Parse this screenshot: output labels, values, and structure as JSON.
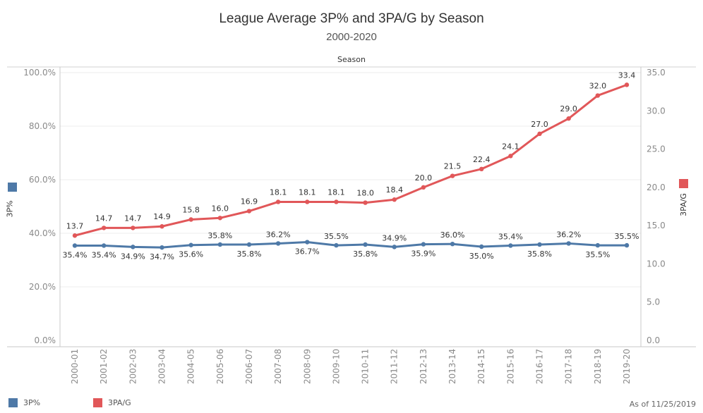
{
  "header": {
    "title": "League Average 3P% and 3PA/G by Season",
    "subtitle": "2000-2020",
    "column_header": "Season"
  },
  "footer": {
    "as_of": "As of 11/25/2019"
  },
  "legend": [
    {
      "label": "3P%",
      "color": "#4e79a7"
    },
    {
      "label": "3PA/G",
      "color": "#e15759"
    }
  ],
  "chart_data": {
    "type": "line",
    "title": "League Average 3P% and 3PA/G by Season",
    "subtitle": "2000-2020",
    "xlabel": "Season",
    "categories": [
      "2000-01",
      "2001-02",
      "2002-03",
      "2003-04",
      "2004-05",
      "2005-06",
      "2006-07",
      "2007-08",
      "2008-09",
      "2009-10",
      "2010-11",
      "2011-12",
      "2012-13",
      "2013-14",
      "2014-15",
      "2015-16",
      "2016-17",
      "2017-18",
      "2018-19",
      "2019-20"
    ],
    "series": [
      {
        "name": "3P%",
        "axis": "left",
        "color": "#4e79a7",
        "values": [
          35.4,
          35.4,
          34.9,
          34.7,
          35.6,
          35.8,
          35.8,
          36.2,
          36.7,
          35.5,
          35.8,
          34.9,
          35.9,
          36.0,
          35.0,
          35.4,
          35.8,
          36.2,
          35.5,
          35.5
        ],
        "labels": [
          "35.4%",
          "35.4%",
          "34.9%",
          "34.7%",
          "35.6%",
          "35.8%",
          "35.8%",
          "36.2%",
          "36.7%",
          "35.5%",
          "35.8%",
          "34.9%",
          "35.9%",
          "36.0%",
          "35.0%",
          "35.4%",
          "35.8%",
          "36.2%",
          "35.5%",
          "35.5%"
        ],
        "label_positions": [
          "below",
          "below",
          "below",
          "below",
          "below",
          "above",
          "below",
          "above",
          "below",
          "above",
          "below",
          "above",
          "below",
          "above",
          "below",
          "above",
          "below",
          "above",
          "below",
          "above"
        ]
      },
      {
        "name": "3PA/G",
        "axis": "right",
        "color": "#e15759",
        "values": [
          13.7,
          14.7,
          14.7,
          14.9,
          15.8,
          16.0,
          16.9,
          18.1,
          18.1,
          18.1,
          18.0,
          18.4,
          20.0,
          21.5,
          22.4,
          24.1,
          27.0,
          29.0,
          32.0,
          33.4
        ],
        "labels": [
          "13.7",
          "14.7",
          "14.7",
          "14.9",
          "15.8",
          "16.0",
          "16.9",
          "18.1",
          "18.1",
          "18.1",
          "18.0",
          "18.4",
          "20.0",
          "21.5",
          "22.4",
          "24.1",
          "27.0",
          "29.0",
          "32.0",
          "33.4"
        ]
      }
    ],
    "left_axis": {
      "title": "3P%",
      "range": [
        0,
        100
      ],
      "ticks": [
        0,
        20,
        40,
        60,
        80,
        100
      ],
      "tick_labels": [
        "0.0%",
        "20.0%",
        "40.0%",
        "60.0%",
        "80.0%",
        "100.0%"
      ]
    },
    "right_axis": {
      "title": "3PA/G",
      "range": [
        0,
        35
      ],
      "ticks": [
        0,
        5,
        10,
        15,
        20,
        25,
        30,
        35
      ],
      "tick_labels": [
        "0.0",
        "5.0",
        "10.0",
        "15.0",
        "20.0",
        "25.0",
        "30.0",
        "35.0"
      ]
    },
    "grid": true,
    "legend_position": "bottom-left"
  }
}
